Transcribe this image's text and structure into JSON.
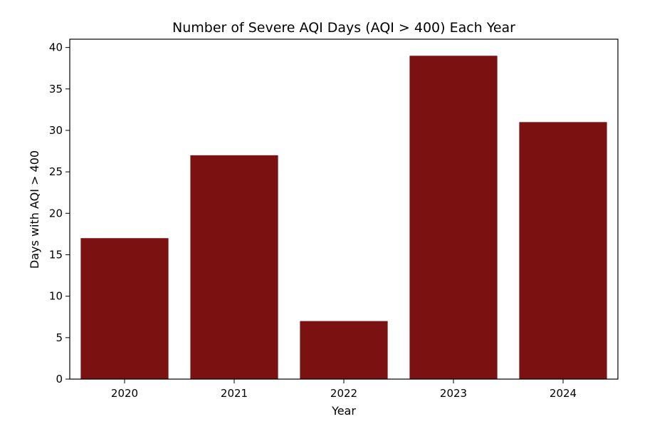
{
  "chart_data": {
    "type": "bar",
    "title": "Number of Severe AQI Days (AQI > 400) Each Year",
    "xlabel": "Year",
    "ylabel": "Days with AQI > 400",
    "categories": [
      "2020",
      "2021",
      "2022",
      "2023",
      "2024"
    ],
    "values": [
      17,
      27,
      7,
      39,
      31
    ],
    "ylim": [
      0,
      41
    ],
    "yticks": [
      0,
      5,
      10,
      15,
      20,
      25,
      30,
      35,
      40
    ],
    "bar_color": "#7b1111",
    "grid": false,
    "legend": "none"
  }
}
